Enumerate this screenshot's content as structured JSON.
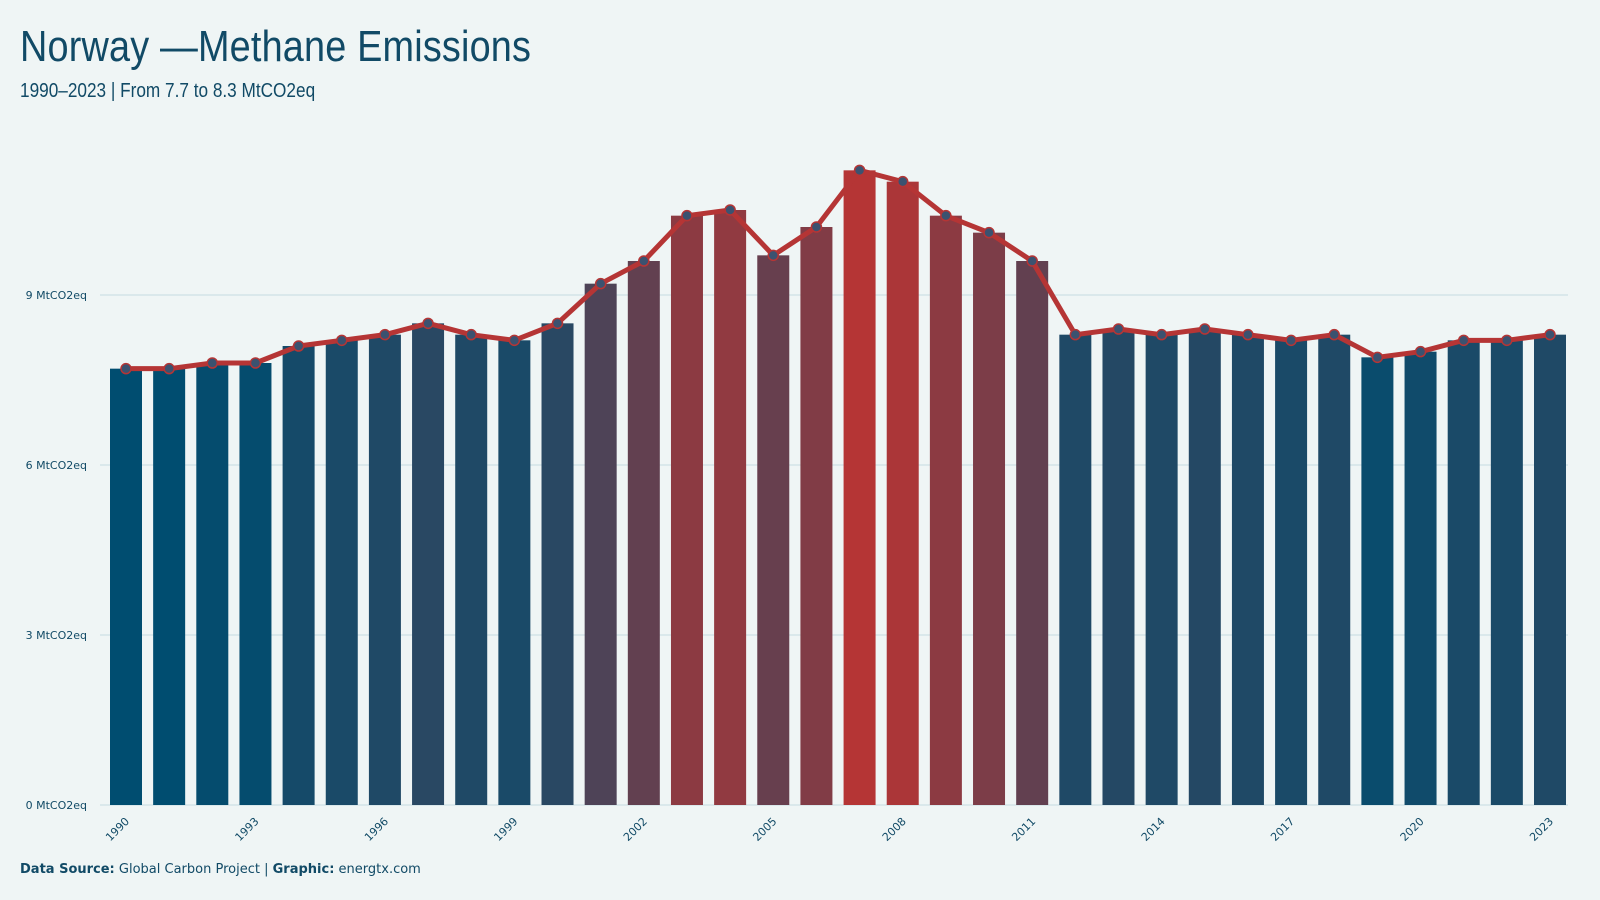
{
  "title": "Norway —Methane Emissions",
  "subtitle": "1990–2023 | From 7.7 to 8.3 MtCO2eq",
  "caption": {
    "source_label": "Data Source:",
    "source_value": "Global Carbon Project",
    "separator": "|",
    "graphic_label": "Graphic:",
    "graphic_value": "energtx.com"
  },
  "colors": {
    "background": "#eff5f5",
    "low": "#004d70",
    "high": "#b53535",
    "line": "#b53535",
    "marker_fill": "#3b5270",
    "gridline": "#d4e4e8",
    "text": "#114a66"
  },
  "chart_data": {
    "type": "bar",
    "categories": [
      "1990",
      "1991",
      "1992",
      "1993",
      "1994",
      "1995",
      "1996",
      "1997",
      "1998",
      "1999",
      "2000",
      "2001",
      "2002",
      "2003",
      "2004",
      "2005",
      "2006",
      "2007",
      "2008",
      "2009",
      "2010",
      "2011",
      "2012",
      "2013",
      "2014",
      "2015",
      "2016",
      "2017",
      "2018",
      "2019",
      "2020",
      "2021",
      "2022",
      "2023"
    ],
    "values": [
      7.7,
      7.7,
      7.8,
      7.8,
      8.1,
      8.2,
      8.3,
      8.5,
      8.3,
      8.2,
      8.5,
      9.2,
      9.6,
      10.4,
      10.5,
      9.7,
      10.2,
      11.2,
      11.0,
      10.4,
      10.1,
      9.6,
      8.3,
      8.4,
      8.3,
      8.4,
      8.3,
      8.2,
      8.3,
      7.9,
      8.0,
      8.2,
      8.2,
      8.3
    ],
    "overlay": "line-with-markers",
    "ylim": [
      0,
      12
    ],
    "yticks": [
      {
        "value": 0,
        "label": "0 MtCO2eq"
      },
      {
        "value": 3,
        "label": "3 MtCO2eq"
      },
      {
        "value": 6,
        "label": "6 MtCO2eq"
      },
      {
        "value": 9,
        "label": "9 MtCO2eq"
      }
    ],
    "xtick_labels": [
      "1990",
      "1993",
      "1996",
      "1999",
      "2002",
      "2005",
      "2008",
      "2011",
      "2014",
      "2017",
      "2020",
      "2023"
    ],
    "xlabel": "",
    "ylabel": "",
    "grid": "horizontal",
    "legend": "none"
  }
}
